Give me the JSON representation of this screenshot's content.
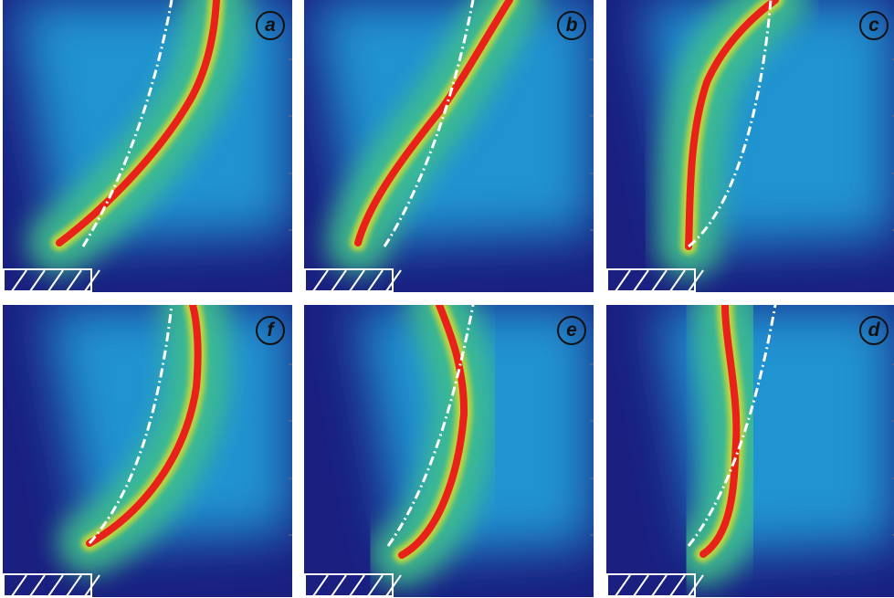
{
  "panels": [
    {
      "label": "a"
    },
    {
      "label": "b"
    },
    {
      "label": "c"
    },
    {
      "label": "f"
    },
    {
      "label": "e"
    },
    {
      "label": "d"
    }
  ],
  "colors": {
    "background": "#1a1f80",
    "outer_glow": "#23a8e0",
    "mid_glow": "#3fbf8a",
    "inner_glow": "#c8d838",
    "core": "#e8221a",
    "guide_line": "#ffffff",
    "frame": "#ffffff"
  }
}
